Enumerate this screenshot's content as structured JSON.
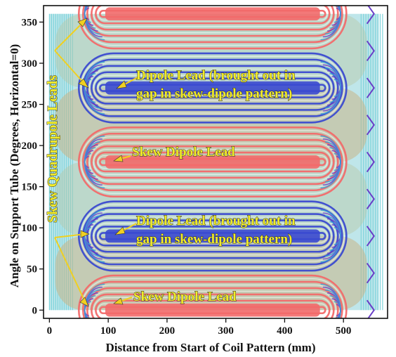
{
  "figure": {
    "xlabel": "Distance from Start of Coil Pattern (mm)",
    "ylabel": "Angle on Support Tube (Degrees, Horizontal=0)",
    "x_ticks": [
      0,
      100,
      200,
      300,
      400,
      500
    ],
    "y_ticks": [
      0,
      50,
      100,
      150,
      200,
      250,
      300,
      350
    ],
    "xlim": [
      -10,
      575
    ],
    "ylim": [
      -10,
      370
    ],
    "colors": {
      "skew_dipole_conductor": "#f26a6a",
      "dipole_conductor": "#3b4ad0",
      "skew_quadrupole_region": "#c8b486",
      "end_region": "#7fd4dc",
      "turn_purple": "#6a3fc8",
      "turn_blue": "#3aa0d8",
      "callout_text": "#f4ee2a",
      "callout_arrow": "#f0d020"
    }
  },
  "annotations": {
    "dipole_lead_upper_line1": "Dipole Lead (brought out in",
    "dipole_lead_upper_line2": "gap in skew-dipole pattern)",
    "skew_dipole_lead_middle": "Skew Dipole Lead",
    "dipole_lead_lower_line1": "Dipole Lead (brought out in",
    "dipole_lead_lower_line2": "gap in skew-dipole pattern)",
    "skew_dipole_lead_bottom": "Skew Dipole Lead",
    "skew_quadrupole_leads": "Skew Quadrupole Leads"
  }
}
